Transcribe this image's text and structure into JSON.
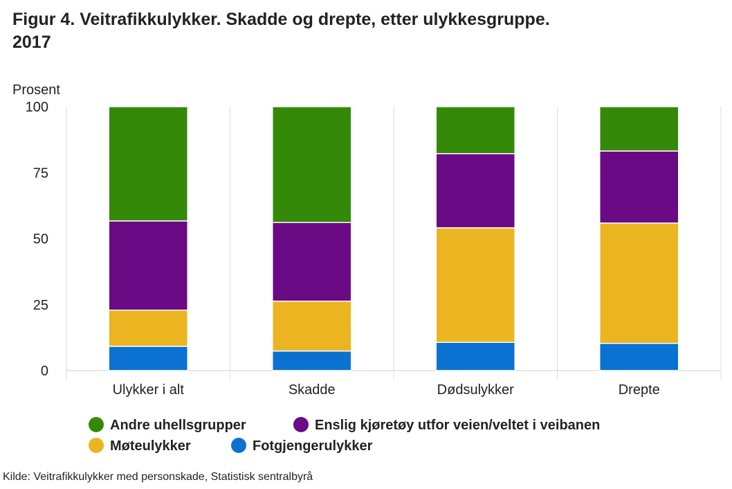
{
  "title": {
    "line1": "Figur 4. Veitrafikkulykker. Skadde og drepte, etter ulykkesgruppe.",
    "line2": "2017"
  },
  "source": "Kilde: Veitrafikkulykker med personskade, Statistisk sentralbyrå",
  "chart_data": {
    "type": "bar",
    "stacked": true,
    "title": "Figur 4. Veitrafikkulykker. Skadde og drepte, etter ulykkesgruppe. 2017",
    "ylabel": "Prosent",
    "xlabel": "",
    "ylim": [
      0,
      100
    ],
    "yticks": [
      "0",
      "25",
      "50",
      "75",
      "100"
    ],
    "categories": [
      "Ulykker i alt",
      "Skadde",
      "Dødsulykker",
      "Drepte"
    ],
    "series": [
      {
        "name": "Fotgjengerulykker",
        "color": "#0b72d1",
        "values": [
          9.2,
          7.4,
          10.7,
          10.3
        ]
      },
      {
        "name": "Møteulykker",
        "color": "#ebb421",
        "values": [
          13.7,
          18.9,
          43.4,
          45.6
        ]
      },
      {
        "name": "Enslig kjøretøy utfor veien/veltet i veibanen",
        "color": "#6a0a85",
        "values": [
          33.8,
          29.8,
          28.1,
          27.3
        ]
      },
      {
        "name": "Andre uhellsgrupper",
        "color": "#348a08",
        "values": [
          43.3,
          43.9,
          17.8,
          16.8
        ]
      }
    ],
    "legend_position": "bottom",
    "grid": true
  },
  "legend": {
    "items": [
      {
        "label": "Andre uhellsgrupper",
        "color": "#348a08"
      },
      {
        "label": "Enslig kjøretøy utfor veien/veltet i veibanen",
        "color": "#6a0a85"
      },
      {
        "label": "Møteulykker",
        "color": "#ebb421"
      },
      {
        "label": "Fotgjengerulykker",
        "color": "#0b72d1"
      }
    ]
  }
}
